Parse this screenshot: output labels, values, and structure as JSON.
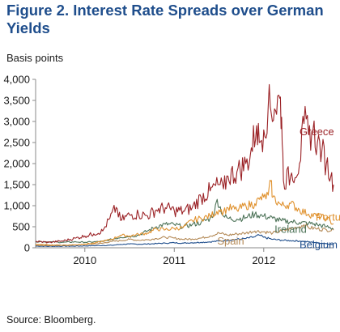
{
  "figure": {
    "title": "Figure 2.  Interest Rate Spreads over German Yields",
    "source": "Source: Bloomberg."
  },
  "chart_data": {
    "type": "line",
    "title": "Figure 2.  Interest Rate Spreads over German Yields",
    "ylabel": "Basis points",
    "xlabel": "",
    "ylim": [
      0,
      4000
    ],
    "xlim": [
      2009.45,
      2012.78
    ],
    "y_ticks": [
      0,
      500,
      1000,
      1500,
      2000,
      2500,
      3000,
      3500,
      4000
    ],
    "y_tick_labels": [
      "0",
      "500",
      "1,000",
      "1,500",
      "2,000",
      "2,500",
      "3,000",
      "3,500",
      "4,000"
    ],
    "x_tick_labels": [
      {
        "label": "2010",
        "x": 2010.0
      },
      {
        "label": "2011",
        "x": 2011.0
      },
      {
        "label": "2012",
        "x": 2012.0
      }
    ],
    "grid": false,
    "legend": "inline labels",
    "series": [
      {
        "name": "Greece",
        "color": "#9b2226",
        "label_at": [
          2012.4,
          2750
        ],
        "points": [
          [
            2009.45,
            150
          ],
          [
            2009.6,
            130
          ],
          [
            2009.75,
            160
          ],
          [
            2009.9,
            230
          ],
          [
            2010.0,
            280
          ],
          [
            2010.1,
            330
          ],
          [
            2010.2,
            400
          ],
          [
            2010.28,
            700
          ],
          [
            2010.35,
            960
          ],
          [
            2010.4,
            650
          ],
          [
            2010.5,
            780
          ],
          [
            2010.6,
            800
          ],
          [
            2010.7,
            760
          ],
          [
            2010.8,
            900
          ],
          [
            2010.9,
            950
          ],
          [
            2011.0,
            880
          ],
          [
            2011.1,
            870
          ],
          [
            2011.2,
            950
          ],
          [
            2011.3,
            1200
          ],
          [
            2011.4,
            1350
          ],
          [
            2011.5,
            1500
          ],
          [
            2011.55,
            1400
          ],
          [
            2011.6,
            1700
          ],
          [
            2011.7,
            1800
          ],
          [
            2011.8,
            2000
          ],
          [
            2011.85,
            2200
          ],
          [
            2011.92,
            2900
          ],
          [
            2011.95,
            2500
          ],
          [
            2012.0,
            2800
          ],
          [
            2012.05,
            3350
          ],
          [
            2012.12,
            3300
          ],
          [
            2012.18,
            3550
          ],
          [
            2012.2,
            3100
          ],
          [
            2012.22,
            1600
          ],
          [
            2012.3,
            1700
          ],
          [
            2012.4,
            2000
          ],
          [
            2012.45,
            2950
          ],
          [
            2012.5,
            2700
          ],
          [
            2012.55,
            2800
          ],
          [
            2012.6,
            2500
          ],
          [
            2012.65,
            2300
          ],
          [
            2012.7,
            2000
          ],
          [
            2012.75,
            1700
          ],
          [
            2012.78,
            1500
          ]
        ]
      },
      {
        "name": "Portugal",
        "color": "#e0922f",
        "label_at": [
          2012.58,
          720
        ],
        "points": [
          [
            2009.45,
            80
          ],
          [
            2009.6,
            70
          ],
          [
            2009.75,
            60
          ],
          [
            2009.9,
            70
          ],
          [
            2010.0,
            90
          ],
          [
            2010.1,
            110
          ],
          [
            2010.3,
            200
          ],
          [
            2010.4,
            300
          ],
          [
            2010.5,
            280
          ],
          [
            2010.6,
            320
          ],
          [
            2010.7,
            350
          ],
          [
            2010.8,
            450
          ],
          [
            2010.9,
            430
          ],
          [
            2011.0,
            460
          ],
          [
            2011.1,
            480
          ],
          [
            2011.2,
            650
          ],
          [
            2011.3,
            700
          ],
          [
            2011.4,
            750
          ],
          [
            2011.5,
            900
          ],
          [
            2011.55,
            850
          ],
          [
            2011.6,
            950
          ],
          [
            2011.7,
            900
          ],
          [
            2011.8,
            1000
          ],
          [
            2011.9,
            1050
          ],
          [
            2011.95,
            1150
          ],
          [
            2012.0,
            1200
          ],
          [
            2012.05,
            1250
          ],
          [
            2012.08,
            1580
          ],
          [
            2012.1,
            1200
          ],
          [
            2012.2,
            1000
          ],
          [
            2012.3,
            1050
          ],
          [
            2012.4,
            900
          ],
          [
            2012.5,
            800
          ],
          [
            2012.6,
            750
          ],
          [
            2012.7,
            700
          ],
          [
            2012.78,
            570
          ]
        ]
      },
      {
        "name": "Ireland",
        "color": "#4d7358",
        "label_at": [
          2012.12,
          430
        ],
        "points": [
          [
            2009.45,
            150
          ],
          [
            2009.6,
            140
          ],
          [
            2009.75,
            130
          ],
          [
            2009.9,
            140
          ],
          [
            2010.0,
            130
          ],
          [
            2010.1,
            140
          ],
          [
            2010.2,
            150
          ],
          [
            2010.3,
            200
          ],
          [
            2010.4,
            250
          ],
          [
            2010.5,
            270
          ],
          [
            2010.6,
            300
          ],
          [
            2010.7,
            400
          ],
          [
            2010.8,
            500
          ],
          [
            2010.9,
            560
          ],
          [
            2011.0,
            550
          ],
          [
            2011.1,
            500
          ],
          [
            2011.2,
            550
          ],
          [
            2011.3,
            600
          ],
          [
            2011.4,
            700
          ],
          [
            2011.45,
            850
          ],
          [
            2011.48,
            1150
          ],
          [
            2011.55,
            750
          ],
          [
            2011.6,
            700
          ],
          [
            2011.7,
            680
          ],
          [
            2011.8,
            720
          ],
          [
            2011.9,
            800
          ],
          [
            2012.0,
            750
          ],
          [
            2012.1,
            700
          ],
          [
            2012.2,
            640
          ],
          [
            2012.3,
            620
          ],
          [
            2012.4,
            600
          ],
          [
            2012.5,
            580
          ],
          [
            2012.6,
            550
          ],
          [
            2012.7,
            500
          ],
          [
            2012.78,
            450
          ]
        ]
      },
      {
        "name": "Spain",
        "color": "#b48a57",
        "label_at": [
          2011.48,
          150
        ],
        "points": [
          [
            2009.45,
            60
          ],
          [
            2009.6,
            55
          ],
          [
            2009.75,
            60
          ],
          [
            2009.9,
            70
          ],
          [
            2010.0,
            80
          ],
          [
            2010.1,
            90
          ],
          [
            2010.2,
            110
          ],
          [
            2010.3,
            150
          ],
          [
            2010.4,
            170
          ],
          [
            2010.5,
            200
          ],
          [
            2010.6,
            180
          ],
          [
            2010.7,
            190
          ],
          [
            2010.8,
            220
          ],
          [
            2010.9,
            250
          ],
          [
            2011.0,
            230
          ],
          [
            2011.1,
            200
          ],
          [
            2011.2,
            210
          ],
          [
            2011.3,
            230
          ],
          [
            2011.4,
            280
          ],
          [
            2011.5,
            350
          ],
          [
            2011.6,
            300
          ],
          [
            2011.7,
            330
          ],
          [
            2011.8,
            350
          ],
          [
            2011.9,
            400
          ],
          [
            2012.0,
            380
          ],
          [
            2012.1,
            350
          ],
          [
            2012.2,
            400
          ],
          [
            2012.3,
            450
          ],
          [
            2012.4,
            500
          ],
          [
            2012.45,
            550
          ],
          [
            2012.5,
            480
          ],
          [
            2012.6,
            450
          ],
          [
            2012.7,
            430
          ],
          [
            2012.78,
            420
          ]
        ]
      },
      {
        "name": "Belgium",
        "color": "#1f4e8c",
        "label_at": [
          2012.4,
          70
        ],
        "points": [
          [
            2009.45,
            40
          ],
          [
            2009.6,
            35
          ],
          [
            2009.75,
            38
          ],
          [
            2009.9,
            40
          ],
          [
            2010.0,
            45
          ],
          [
            2010.1,
            50
          ],
          [
            2010.2,
            55
          ],
          [
            2010.3,
            60
          ],
          [
            2010.4,
            80
          ],
          [
            2010.5,
            90
          ],
          [
            2010.6,
            85
          ],
          [
            2010.7,
            90
          ],
          [
            2010.8,
            100
          ],
          [
            2010.9,
            110
          ],
          [
            2011.0,
            120
          ],
          [
            2011.1,
            110
          ],
          [
            2011.2,
            120
          ],
          [
            2011.3,
            130
          ],
          [
            2011.4,
            140
          ],
          [
            2011.5,
            160
          ],
          [
            2011.6,
            180
          ],
          [
            2011.7,
            200
          ],
          [
            2011.8,
            220
          ],
          [
            2011.9,
            260
          ],
          [
            2011.95,
            300
          ],
          [
            2012.0,
            250
          ],
          [
            2012.1,
            200
          ],
          [
            2012.2,
            180
          ],
          [
            2012.3,
            170
          ],
          [
            2012.4,
            160
          ],
          [
            2012.5,
            140
          ],
          [
            2012.6,
            120
          ],
          [
            2012.7,
            100
          ],
          [
            2012.78,
            70
          ]
        ]
      }
    ]
  }
}
